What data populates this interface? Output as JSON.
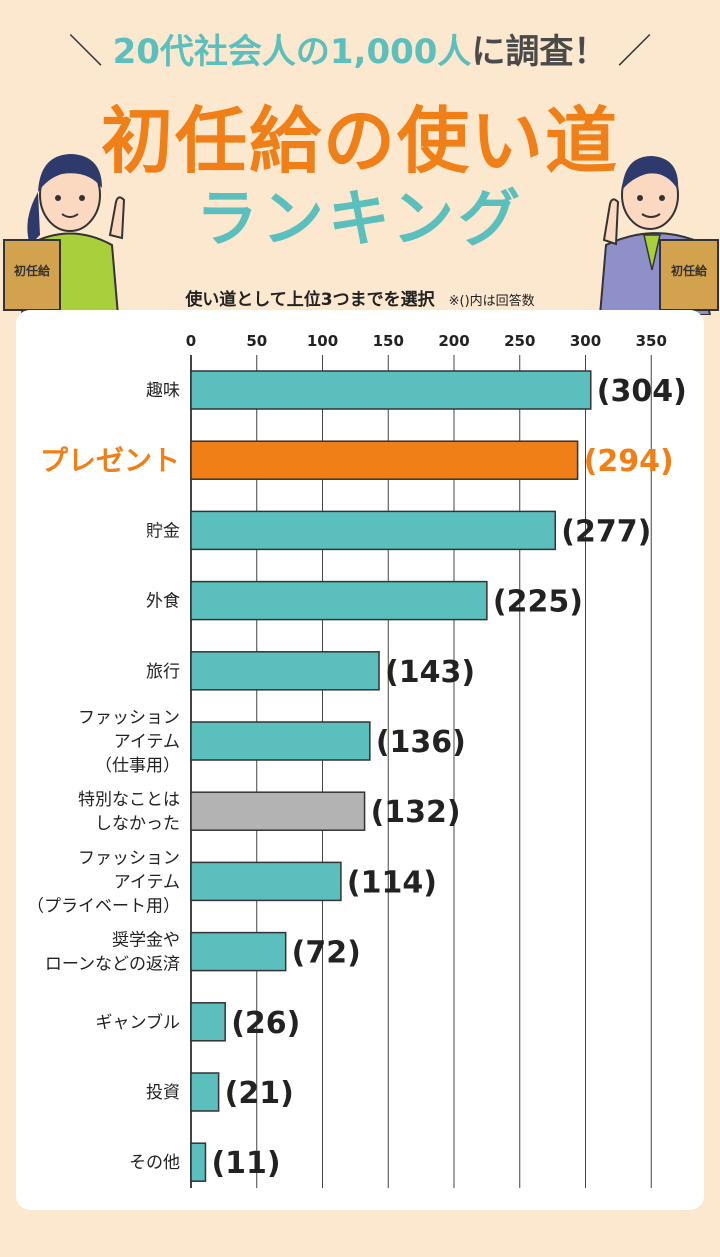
{
  "header": {
    "survey_prefix": "20代社会人の",
    "survey_count": "1,000人",
    "survey_suffix": "に調査！",
    "title_line1": "初任給の使い道",
    "title_line2": "ランキング",
    "envelope_label_left": "初任給",
    "envelope_label_right": "初任給"
  },
  "subtitle": "使い道として上位3つまでを選択",
  "note": "※()内は回答数",
  "colors": {
    "bar_default": "#5bbfbd",
    "bar_highlight": "#ef7f16",
    "bar_neutral": "#b3b3b3",
    "background": "#fbe8cf",
    "title_orange": "#ef7f16",
    "title_teal": "#5bbfbd"
  },
  "chart_data": {
    "type": "bar",
    "orientation": "horizontal",
    "title": "使い道として上位3つまでを選択",
    "xlim": [
      0,
      350
    ],
    "ticks": [
      "0",
      "50",
      "100",
      "150",
      "200",
      "250",
      "300",
      "350"
    ],
    "grid": true,
    "categories": [
      [
        "趣味"
      ],
      [
        "プレゼント"
      ],
      [
        "貯金"
      ],
      [
        "外食"
      ],
      [
        "旅行"
      ],
      [
        "ファッション",
        "アイテム",
        "（仕事用）"
      ],
      [
        "特別なことは",
        "しなかった"
      ],
      [
        "ファッション",
        "アイテム",
        "（プライベート用）"
      ],
      [
        "奨学金や",
        "ローンなどの返済"
      ],
      [
        "ギャンブル"
      ],
      [
        "投資"
      ],
      [
        "その他"
      ]
    ],
    "values": [
      304,
      294,
      277,
      225,
      143,
      136,
      132,
      114,
      72,
      26,
      21,
      11
    ],
    "value_labels": [
      "(304)",
      "(294)",
      "(277)",
      "(225)",
      "(143)",
      "(136)",
      "(132)",
      "(114)",
      "(72)",
      "(26)",
      "(21)",
      "(11)"
    ],
    "highlight_index": 1,
    "neutral_index": 6
  }
}
